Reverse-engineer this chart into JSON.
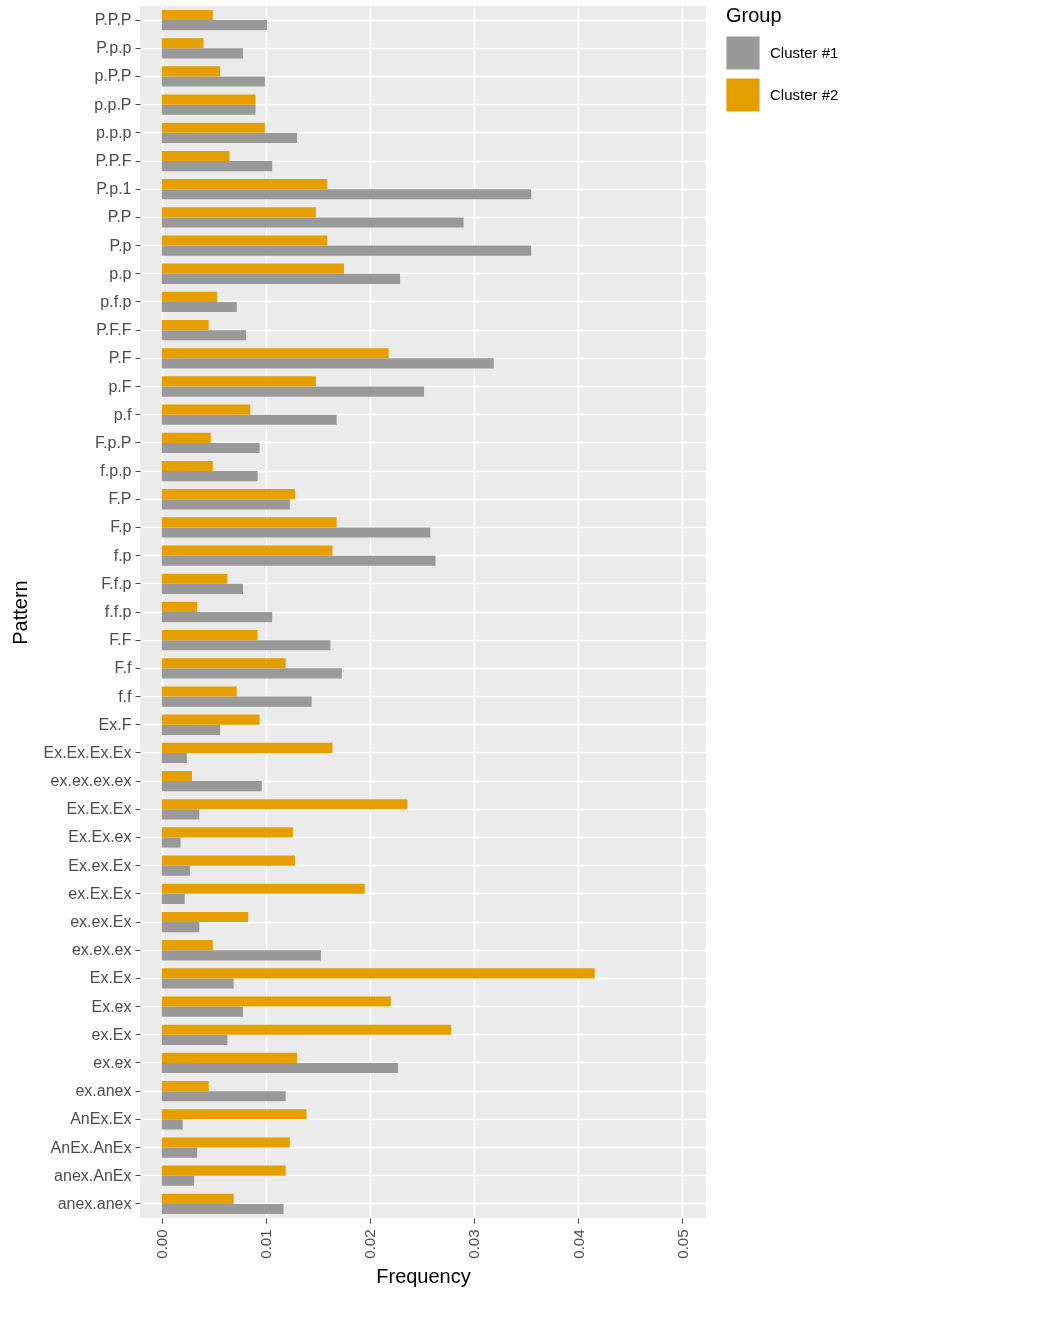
{
  "chart_data": {
    "type": "bar",
    "orientation": "horizontal",
    "xlabel": "Frequency",
    "ylabel": "Pattern",
    "legend_title": "Group",
    "legend": "right",
    "grid": true,
    "categories": [
      "P.P.P",
      "P.p.p",
      "p.P.P",
      "p.p.P",
      "p.p.p",
      "P.P.F",
      "P.p.1",
      "P.P",
      "P.p",
      "p.p",
      "p.f.p",
      "P.F.F",
      "P.F",
      "p.F",
      "p.f",
      "F.p.P",
      "f.p.p",
      "F.P",
      "F.p",
      "f.p",
      "F.f.p",
      "f.f.p",
      "F.F",
      "F.f",
      "f.f",
      "Ex.F",
      "Ex.Ex.Ex.Ex",
      "ex.ex.ex.ex",
      "Ex.Ex.Ex",
      "Ex.Ex.ex",
      "Ex.ex.Ex",
      "ex.Ex.Ex",
      "ex.ex.Ex",
      "ex.ex.ex",
      "Ex.Ex",
      "Ex.ex",
      "ex.Ex",
      "ex.ex",
      "ex.anex",
      "AnEx.Ex",
      "AnEx.AnEx",
      "anex.AnEx",
      "anex.anex"
    ],
    "series": [
      {
        "name": "Cluster #1",
        "color": "#999999",
        "values": [
          0.0101,
          0.0078,
          0.0099,
          0.009,
          0.013,
          0.0106,
          0.0355,
          0.029,
          0.0355,
          0.0229,
          0.0072,
          0.0081,
          0.0319,
          0.0252,
          0.0168,
          0.0094,
          0.0092,
          0.0123,
          0.0258,
          0.0263,
          0.0078,
          0.0106,
          0.0162,
          0.0173,
          0.0144,
          0.0056,
          0.0024,
          0.0096,
          0.0036,
          0.0018,
          0.0027,
          0.0022,
          0.0036,
          0.0153,
          0.0069,
          0.0078,
          0.0063,
          0.0227,
          0.0119,
          0.002,
          0.0034,
          0.0031,
          0.0117
        ]
      },
      {
        "name": "Cluster #2",
        "color": "#e69f00",
        "values": [
          0.0049,
          0.004,
          0.0056,
          0.009,
          0.0099,
          0.0065,
          0.0159,
          0.0148,
          0.0159,
          0.0175,
          0.0053,
          0.0045,
          0.0218,
          0.0148,
          0.0085,
          0.0047,
          0.0049,
          0.0128,
          0.0168,
          0.0164,
          0.0063,
          0.0034,
          0.0092,
          0.0119,
          0.0072,
          0.0094,
          0.0164,
          0.0029,
          0.0236,
          0.0126,
          0.0128,
          0.0195,
          0.0083,
          0.0049,
          0.0416,
          0.022,
          0.0278,
          0.013,
          0.0045,
          0.0139,
          0.0123,
          0.0119,
          0.0069
        ]
      }
    ],
    "xlim": [
      -0.0021,
      0.0523
    ],
    "xticks": [
      {
        "value": 0,
        "label": "0.00"
      },
      {
        "value": 0.01,
        "label": "0.01"
      },
      {
        "value": 0.02,
        "label": "0.02"
      },
      {
        "value": 0.03,
        "label": "0.03"
      },
      {
        "value": 0.04,
        "label": "0.04"
      },
      {
        "value": 0.05,
        "label": "0.05"
      }
    ]
  }
}
